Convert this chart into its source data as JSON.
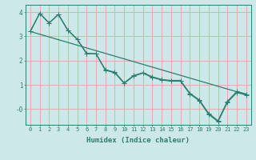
{
  "xlabel": "Humidex (Indice chaleur)",
  "background_color": "#cce8e8",
  "grid_color": "#e8aaaa",
  "line_color": "#2e7d6e",
  "xlim": [
    -0.5,
    23.5
  ],
  "ylim": [
    -0.65,
    4.3
  ],
  "yticks": [
    0,
    1,
    2,
    3,
    4
  ],
  "ytick_labels": [
    "-0",
    "1",
    "2",
    "3",
    "4"
  ],
  "xticks": [
    0,
    1,
    2,
    3,
    4,
    5,
    6,
    7,
    8,
    9,
    10,
    11,
    12,
    13,
    14,
    15,
    16,
    17,
    18,
    19,
    20,
    21,
    22,
    23
  ],
  "line1_x": [
    0,
    1,
    2,
    3,
    4,
    5,
    6,
    7,
    8,
    9,
    10,
    11,
    12,
    13,
    14,
    15,
    16,
    17,
    18,
    19,
    20,
    21,
    22,
    23
  ],
  "line1_y": [
    3.2,
    3.95,
    3.55,
    3.9,
    3.25,
    2.88,
    2.3,
    2.28,
    1.62,
    1.52,
    1.08,
    1.38,
    1.5,
    1.33,
    1.22,
    1.18,
    1.18,
    0.65,
    0.38,
    -0.18,
    -0.48,
    0.32,
    0.72,
    0.62
  ],
  "line2_x": [
    0,
    1,
    2,
    3,
    4,
    5,
    6,
    7,
    8,
    9,
    10,
    11,
    12,
    13,
    14,
    15,
    16,
    17,
    18,
    19,
    20,
    21,
    22,
    23
  ],
  "line2_y": [
    3.2,
    3.95,
    3.55,
    3.9,
    3.25,
    2.88,
    2.28,
    2.28,
    1.6,
    1.5,
    1.06,
    1.36,
    1.48,
    1.3,
    1.2,
    1.15,
    1.15,
    0.62,
    0.35,
    -0.22,
    -0.52,
    0.28,
    0.68,
    0.58
  ],
  "line3_x": [
    0,
    23
  ],
  "line3_y": [
    3.2,
    0.6
  ],
  "font_size_tick": 5.5,
  "font_size_label": 6.5,
  "marker_size": 2.0,
  "line_width": 0.9
}
